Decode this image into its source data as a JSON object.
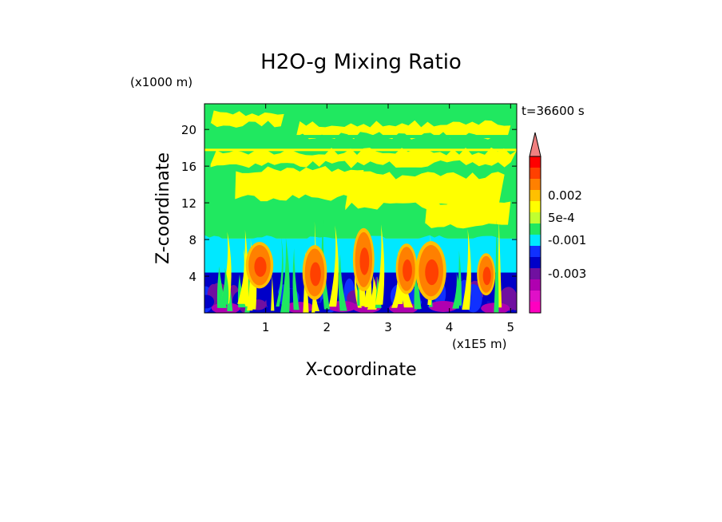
{
  "chart_data": {
    "type": "heatmap",
    "title": "H2O-g Mixing Ratio",
    "xlabel": "X-coordinate",
    "ylabel": "Z-coordinate",
    "x_unit": "(x1E5 m)",
    "y_unit": "(x1000 m)",
    "time_label": "t=36600 s",
    "xlim": [
      0,
      5.1
    ],
    "ylim": [
      0,
      22.8
    ],
    "x_ticks": [
      {
        "value": 1,
        "label": "1"
      },
      {
        "value": 2,
        "label": "2"
      },
      {
        "value": 3,
        "label": "3"
      },
      {
        "value": 4,
        "label": "4"
      },
      {
        "value": 5,
        "label": "5"
      }
    ],
    "y_ticks": [
      {
        "value": 4,
        "label": "4"
      },
      {
        "value": 8,
        "label": "8"
      },
      {
        "value": 12,
        "label": "12"
      },
      {
        "value": 16,
        "label": "16"
      },
      {
        "value": 20,
        "label": "20"
      }
    ],
    "colorbar": {
      "colors": [
        "#ff00c0",
        "#e010c8",
        "#b000b0",
        "#7010a0",
        "#0000c8",
        "#1030ff",
        "#00e8ff",
        "#20e860",
        "#c0ff30",
        "#ffff00",
        "#ffc000",
        "#ff8000",
        "#ff4000",
        "#ff0000",
        "#f08080"
      ],
      "labels": [
        {
          "level": 10.5,
          "text": "0.002"
        },
        {
          "level": 8.5,
          "text": "5e-4"
        },
        {
          "level": 6.5,
          "text": "-0.001"
        },
        {
          "level": 3.5,
          "text": "-0.003"
        }
      ]
    },
    "field": {
      "layers": [
        {
          "z": [
            0,
            1.2
          ],
          "color_index": 4
        },
        {
          "z": [
            1.2,
            4.4
          ],
          "color_index": 4
        },
        {
          "z": [
            4.4,
            8.1
          ],
          "color_index": 6
        },
        {
          "z": [
            8.1,
            22.8
          ],
          "color_index": 7
        }
      ],
      "moist_blobs": [
        {
          "x": 0.9,
          "z": 5.2,
          "w": 0.18,
          "h": 2.2
        },
        {
          "x": 1.8,
          "z": 4.4,
          "w": 0.16,
          "h": 2.6
        },
        {
          "x": 2.6,
          "z": 5.8,
          "w": 0.14,
          "h": 3.0
        },
        {
          "x": 3.3,
          "z": 4.8,
          "w": 0.14,
          "h": 2.4
        },
        {
          "x": 3.7,
          "z": 4.6,
          "w": 0.2,
          "h": 2.8
        },
        {
          "x": 4.6,
          "z": 4.2,
          "w": 0.12,
          "h": 2.0
        }
      ],
      "yellow_regions": [
        {
          "x": [
            0.1,
            5.1
          ],
          "z": [
            16.2,
            17.6
          ]
        },
        {
          "x": [
            0.5,
            2.6
          ],
          "z": [
            12.6,
            15.6
          ]
        },
        {
          "x": [
            2.3,
            4.9
          ],
          "z": [
            11.6,
            15.0
          ]
        },
        {
          "x": [
            3.6,
            5.0
          ],
          "z": [
            9.6,
            12.2
          ]
        },
        {
          "x": [
            0.1,
            1.3
          ],
          "z": [
            20.6,
            21.8
          ]
        },
        {
          "x": [
            1.5,
            5.0
          ],
          "z": [
            19.3,
            20.6
          ]
        }
      ],
      "dry_streaks": [
        {
          "x": 0.35,
          "z": 0.5
        },
        {
          "x": 1.55,
          "z": 0.6
        },
        {
          "x": 2.25,
          "z": 0.7
        },
        {
          "x": 2.65,
          "z": 0.6
        },
        {
          "x": 3.25,
          "z": 0.5
        },
        {
          "x": 3.9,
          "z": 0.7
        },
        {
          "x": 4.75,
          "z": 0.5
        }
      ]
    }
  }
}
